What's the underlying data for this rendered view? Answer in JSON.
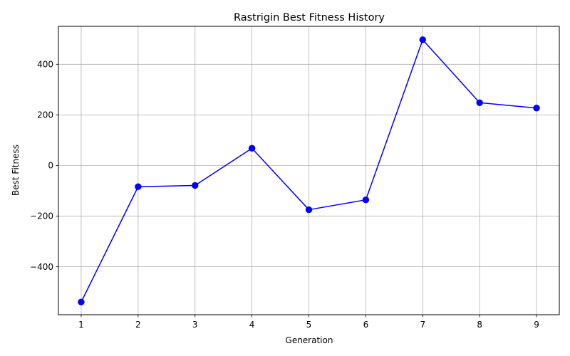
{
  "chart_data": {
    "type": "line",
    "title": "Rastrigin Best Fitness History",
    "xlabel": "Generation",
    "ylabel": "Best Fitness",
    "x": [
      1,
      2,
      3,
      4,
      5,
      6,
      7,
      8,
      9
    ],
    "series": [
      {
        "values": [
          -540,
          -84,
          -79,
          68,
          -175,
          -136,
          497,
          248,
          227
        ],
        "color": "#0000ff",
        "marker": "circle"
      }
    ],
    "xlim": [
      0.6,
      9.4
    ],
    "ylim": [
      -590,
      550
    ],
    "xticks": [
      1,
      2,
      3,
      4,
      5,
      6,
      7,
      8,
      9
    ],
    "xtick_labels": [
      "1",
      "2",
      "3",
      "4",
      "5",
      "6",
      "7",
      "8",
      "9"
    ],
    "yticks": [
      -400,
      -200,
      0,
      200,
      400
    ],
    "ytick_labels": [
      "−400",
      "−200",
      "0",
      "200",
      "400"
    ],
    "grid": true,
    "grid_color": "#b0b0b0",
    "line_color": "#0000ff"
  }
}
